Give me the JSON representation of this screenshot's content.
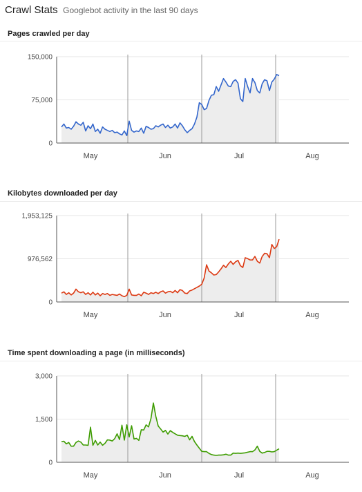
{
  "header": {
    "title": "Crawl Stats",
    "subtitle": "Googlebot activity in the last 90 days"
  },
  "chart_data": [
    {
      "type": "area",
      "title": "Pages crawled per day",
      "color": "#3366cc",
      "x_start": "2012-04-20",
      "month_ticks": [
        "May",
        "Jun",
        "Jul",
        "Aug"
      ],
      "y_ticks": [
        "0",
        "75,000",
        "150,000"
      ],
      "ylim": [
        0,
        150000
      ],
      "values": [
        28000,
        33000,
        26000,
        27000,
        24000,
        29000,
        37000,
        33000,
        31000,
        36000,
        21000,
        30000,
        25000,
        33000,
        20000,
        24000,
        17000,
        28000,
        24000,
        22000,
        20000,
        22000,
        18000,
        19000,
        16000,
        14000,
        21000,
        13000,
        38000,
        22000,
        19000,
        21000,
        20000,
        26000,
        17000,
        29000,
        27000,
        24000,
        25000,
        30000,
        28000,
        31000,
        33000,
        27000,
        31000,
        26000,
        28000,
        33000,
        26000,
        35000,
        30000,
        23000,
        18000,
        22000,
        25000,
        33000,
        45000,
        70000,
        67000,
        58000,
        60000,
        74000,
        83000,
        84000,
        98000,
        90000,
        101000,
        112000,
        106000,
        99000,
        98000,
        107000,
        110000,
        104000,
        77000,
        72000,
        112000,
        98000,
        87000,
        112000,
        105000,
        91000,
        87000,
        103000,
        110000,
        108000,
        91000,
        106000,
        111000,
        119000,
        117000
      ]
    },
    {
      "type": "area",
      "title": "Kilobytes downloaded per day",
      "color": "#dc3912",
      "x_start": "2012-04-20",
      "month_ticks": [
        "May",
        "Jun",
        "Jul",
        "Aug"
      ],
      "y_ticks": [
        "0",
        "976,562",
        "1,953,125"
      ],
      "ylim": [
        0,
        1953125
      ],
      "values": [
        200000,
        230000,
        170000,
        210000,
        160000,
        200000,
        290000,
        230000,
        210000,
        230000,
        170000,
        210000,
        160000,
        220000,
        160000,
        200000,
        140000,
        190000,
        170000,
        190000,
        150000,
        170000,
        160000,
        150000,
        180000,
        140000,
        120000,
        150000,
        290000,
        160000,
        150000,
        150000,
        180000,
        140000,
        220000,
        200000,
        170000,
        210000,
        190000,
        220000,
        190000,
        230000,
        250000,
        200000,
        230000,
        240000,
        210000,
        260000,
        210000,
        280000,
        260000,
        200000,
        190000,
        250000,
        270000,
        300000,
        330000,
        360000,
        400000,
        540000,
        840000,
        700000,
        660000,
        610000,
        620000,
        680000,
        750000,
        830000,
        780000,
        860000,
        920000,
        850000,
        910000,
        940000,
        820000,
        780000,
        1000000,
        980000,
        950000,
        950000,
        1030000,
        920000,
        880000,
        1030000,
        1100000,
        1090000,
        1000000,
        1300000,
        1210000,
        1250000,
        1420000
      ]
    },
    {
      "type": "area",
      "title": "Time spent downloading a page (in milliseconds)",
      "color": "#3d9c00",
      "x_start": "2012-04-20",
      "month_ticks": [
        "May",
        "Jun",
        "Jul",
        "Aug"
      ],
      "y_ticks": [
        "0",
        "1,500",
        "3,000"
      ],
      "ylim": [
        0,
        3000
      ],
      "values": [
        720,
        730,
        640,
        690,
        560,
        560,
        690,
        740,
        700,
        600,
        600,
        590,
        1220,
        590,
        760,
        600,
        700,
        590,
        660,
        780,
        770,
        740,
        820,
        990,
        790,
        1290,
        770,
        1300,
        880,
        1270,
        810,
        830,
        760,
        1130,
        1120,
        1300,
        1230,
        1520,
        2060,
        1600,
        1260,
        1160,
        1050,
        1110,
        980,
        1100,
        1040,
        990,
        940,
        930,
        920,
        900,
        940,
        780,
        900,
        720,
        600,
        490,
        380,
        370,
        370,
        310,
        270,
        250,
        240,
        250,
        250,
        260,
        280,
        250,
        250,
        320,
        310,
        320,
        310,
        320,
        330,
        350,
        370,
        370,
        430,
        560,
        380,
        320,
        340,
        380,
        380,
        360,
        370,
        420,
        470
      ]
    }
  ]
}
